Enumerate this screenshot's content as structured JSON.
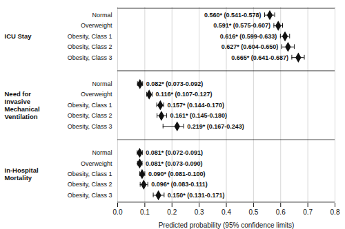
{
  "chart_data": {
    "type": "forest",
    "xlabel": "Predicted probability (95% confidence limits)",
    "xlim": [
      0.0,
      0.8
    ],
    "xticks": [
      {
        "value": 0,
        "label": "0.0"
      },
      0.1,
      0.2,
      0.3,
      0.4,
      0.5,
      0.6,
      0.7,
      0.8
    ],
    "grid": true,
    "data_labels": true,
    "marker": "diamond",
    "color": "#111111",
    "groups": [
      {
        "label": "ICU Stay",
        "categories": [
          "Normal",
          "Overweight",
          "Obesity, Class 1",
          "Obesity, Class 2",
          "Obesity, Class 3"
        ],
        "values": [
          0.56,
          0.591,
          0.616,
          0.627,
          0.665
        ],
        "lower": [
          0.541,
          0.575,
          0.599,
          0.604,
          0.641
        ],
        "upper": [
          0.578,
          0.607,
          0.633,
          0.65,
          0.687
        ],
        "value_labels": [
          "0.560* (0.541-0.578)",
          "0.591* (0.575-0.607)",
          "0.616* (0.599-0.633)",
          "0.627* (0.604-0.650)",
          "0.665* (0.641-0.687)"
        ]
      },
      {
        "label": "Need for\nInvasive\nMechanical\nVentilation",
        "categories": [
          "Normal",
          "Overweight",
          "Obesity, Class 1",
          "Obesity, Class 2",
          "Obesity, Class 3"
        ],
        "values": [
          0.082,
          0.116,
          0.157,
          0.161,
          0.219
        ],
        "lower": [
          0.073,
          0.107,
          0.144,
          0.145,
          0.167
        ],
        "upper": [
          0.092,
          0.127,
          0.17,
          0.18,
          0.243
        ],
        "value_labels": [
          "0.082* (0.073-0.092)",
          "0.116* (0.107-0.127)",
          "0.157* (0.144-0.170)",
          "0.161* (0.145-0.180)",
          "0.219* (0.167-0.243)"
        ]
      },
      {
        "label": "In-Hospital\nMortality",
        "categories": [
          "Normal",
          "Overweight",
          "Obesity, Class 1",
          "Obesity, Class 2",
          "Obesity, Class 3"
        ],
        "values": [
          0.081,
          0.081,
          0.09,
          0.096,
          0.15
        ],
        "lower": [
          0.072,
          0.073,
          0.081,
          0.083,
          0.131
        ],
        "upper": [
          0.091,
          0.09,
          0.1,
          0.111,
          0.171
        ],
        "value_labels": [
          "0.081* (0.072-0.091)",
          "0.081* (0.073-0.090)",
          "0.090* (0.081-0.100)",
          "0.096* (0.083-0.111)",
          "0.150* (0.131-0.171)"
        ]
      }
    ]
  }
}
